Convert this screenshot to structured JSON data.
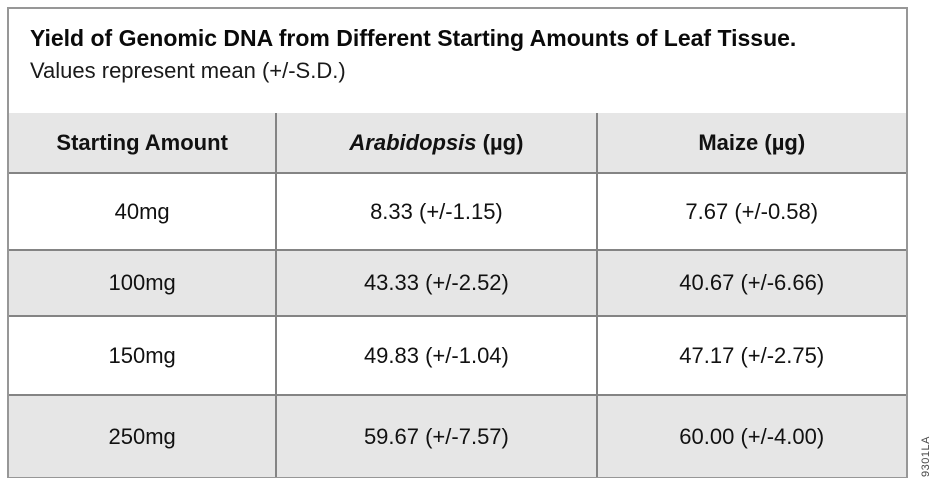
{
  "figure": {
    "title": "Yield of Genomic DNA from Different Starting Amounts of Leaf Tissue.",
    "subtitle": "Values represent mean (+/-S.D.)",
    "side_code": "9301LA"
  },
  "table": {
    "header": {
      "starting_amount": "Starting Amount",
      "arabidopsis_species": "Arabidopsis",
      "arabidopsis_unit": " (µg)",
      "maize": "Maize (µg)"
    },
    "rows": [
      {
        "amount": "40mg",
        "arabidopsis": "8.33 (+/-1.15)",
        "maize": "7.67 (+/-0.58)"
      },
      {
        "amount": "100mg",
        "arabidopsis": "43.33 (+/-2.52)",
        "maize": "40.67 (+/-6.66)"
      },
      {
        "amount": "150mg",
        "arabidopsis": "49.83 (+/-1.04)",
        "maize": "47.17 (+/-2.75)"
      },
      {
        "amount": "250mg",
        "arabidopsis": "59.67 (+/-7.57)",
        "maize": "60.00 (+/-4.00)"
      }
    ]
  },
  "chart_data": {
    "type": "table",
    "title": "Yield of Genomic DNA from Different Starting Amounts of Leaf Tissue.",
    "subtitle": "Values represent mean (+/-S.D.)",
    "columns": [
      "Starting Amount",
      "Arabidopsis (µg)",
      "Maize (µg)"
    ],
    "categories": [
      "40mg",
      "100mg",
      "150mg",
      "250mg"
    ],
    "series": [
      {
        "name": "Arabidopsis (µg)",
        "mean": [
          8.33,
          43.33,
          49.83,
          59.67
        ],
        "sd": [
          1.15,
          2.52,
          1.04,
          7.57
        ]
      },
      {
        "name": "Maize (µg)",
        "mean": [
          7.67,
          40.67,
          47.17,
          60.0
        ],
        "sd": [
          0.58,
          6.66,
          2.75,
          4.0
        ]
      }
    ],
    "shading": "header and alternating rows (100mg, 250mg) light gray #e6e6e6"
  },
  "colors": {
    "row_shade": "#e6e6e6",
    "border_outer": "#979797",
    "border_inner": "#848484",
    "text": "#111111",
    "side_code": "#4a4a4a"
  }
}
